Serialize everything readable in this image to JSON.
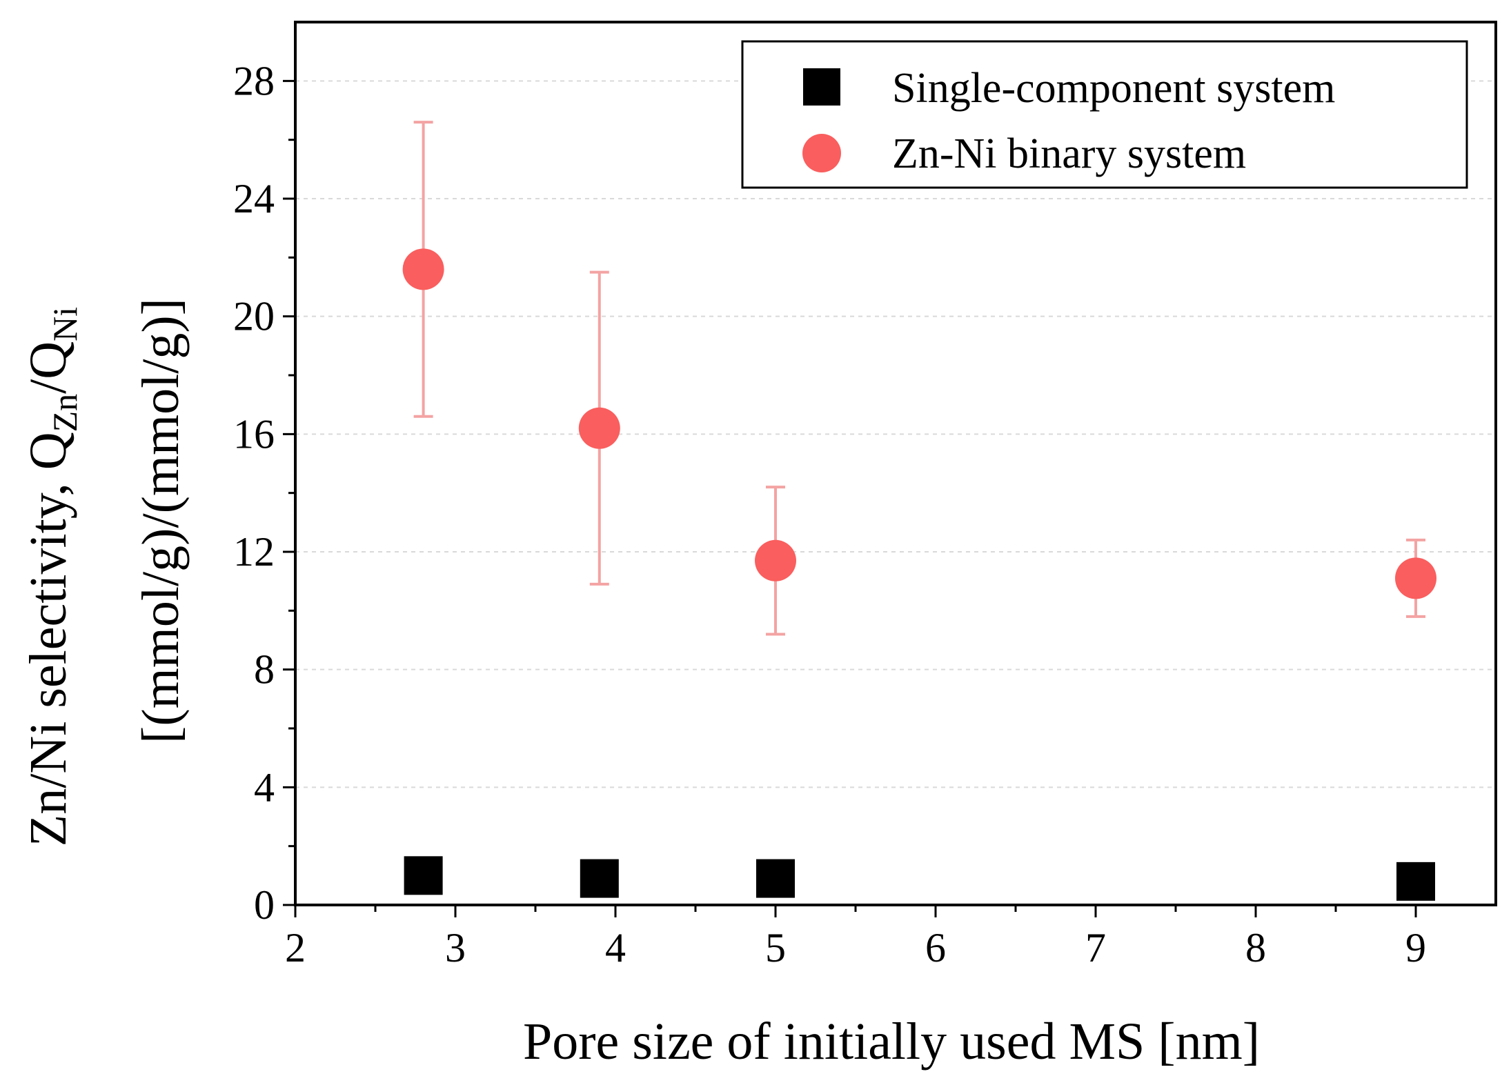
{
  "chart_data": {
    "type": "scatter",
    "xlabel": "Pore size of initially used MS [nm]",
    "ylabel_line1": "Zn/Ni selectivity, Q",
    "ylabel_line1_sub1": "Zn",
    "ylabel_line1_mid": "/Q",
    "ylabel_line1_sub2": "Ni",
    "ylabel_line2": "[(mmol/g)/(mmol/g)]",
    "xlim": [
      2,
      9.5
    ],
    "ylim": [
      0,
      30
    ],
    "x_ticks": [
      2,
      3,
      4,
      5,
      6,
      7,
      8,
      9
    ],
    "y_ticks": [
      0,
      4,
      8,
      12,
      16,
      20,
      24,
      28
    ],
    "grid": "horizontal dashed at y ticks",
    "legend_position": "top-right",
    "series": [
      {
        "name": "Single-component system",
        "marker": "square",
        "color": "#000000",
        "x": [
          2.8,
          3.9,
          5.0,
          9.0
        ],
        "y": [
          1.0,
          0.9,
          0.9,
          0.8
        ]
      },
      {
        "name": "Zn-Ni binary system",
        "marker": "circle",
        "color": "#fa5e5e",
        "error_color": "#f4a3a3",
        "x": [
          2.8,
          3.9,
          5.0,
          9.0
        ],
        "y": [
          21.6,
          16.2,
          11.7,
          11.1
        ],
        "yerr": [
          5.0,
          5.3,
          2.5,
          1.3
        ]
      }
    ]
  }
}
